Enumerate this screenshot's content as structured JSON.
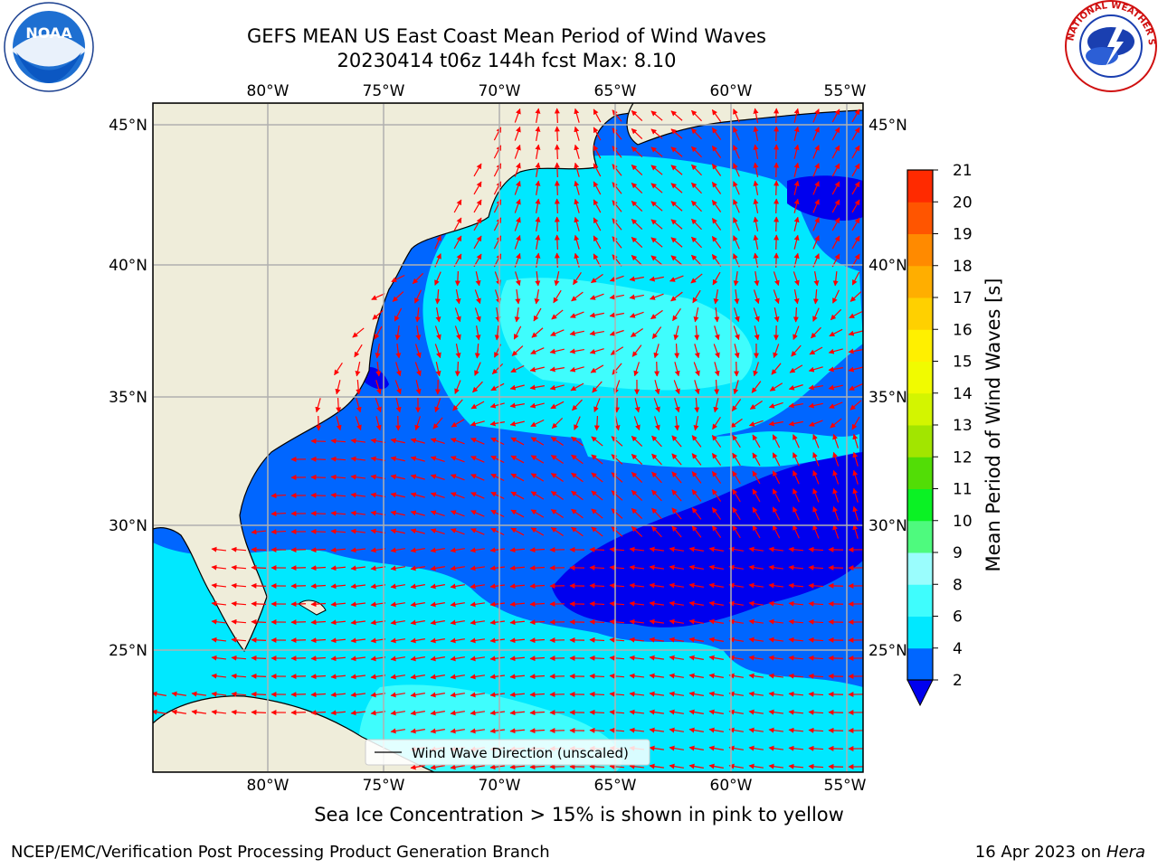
{
  "header": {
    "title_line1": "GEFS MEAN US East Coast Mean Period of Wind Waves",
    "title_line2": "20230414 t06z 144h fcst   Max: 8.10"
  },
  "logos": {
    "noaa": {
      "text": "NOAA",
      "icon": "noaa-logo-icon"
    },
    "nws": {
      "text": "NATIONAL WEATHER SERVICE",
      "icon": "nws-logo-icon"
    }
  },
  "map": {
    "lon_labels": [
      "80°W",
      "75°W",
      "70°W",
      "65°W",
      "60°W",
      "55°W"
    ],
    "lat_labels": [
      "45°N",
      "40°N",
      "35°N",
      "30°N",
      "25°N"
    ],
    "legend_text": "Wind Wave Direction (unscaled)",
    "land_color": "#efedda",
    "coastline_color": "#000000",
    "arrow_color": "#ff0000",
    "grid_color": "#b0b0b0"
  },
  "colorbar": {
    "label": "Mean Period of Wind Waves [s]",
    "tick_labels": [
      "2",
      "4",
      "6",
      "8",
      "9",
      "10",
      "11",
      "12",
      "13",
      "14",
      "15",
      "16",
      "17",
      "18",
      "19",
      "20",
      "21"
    ],
    "colors": [
      "#0066ff",
      "#00e8ff",
      "#3ffdfd",
      "#9afdfd",
      "#4efa7e",
      "#0af224",
      "#52dd06",
      "#a2e500",
      "#d3f500",
      "#f1fb00",
      "#fff000",
      "#ffd000",
      "#ffae00",
      "#ff8a00",
      "#ff5500",
      "#ff2a00"
    ],
    "under_color": "#0000ee"
  },
  "footer": {
    "caption": "Sea Ice Concentration > 15% is shown in pink to yellow",
    "left": "NCEP/EMC/Verification Post Processing Product Generation Branch",
    "right_date": "16 Apr 2023 on ",
    "right_host": "Hera"
  }
}
